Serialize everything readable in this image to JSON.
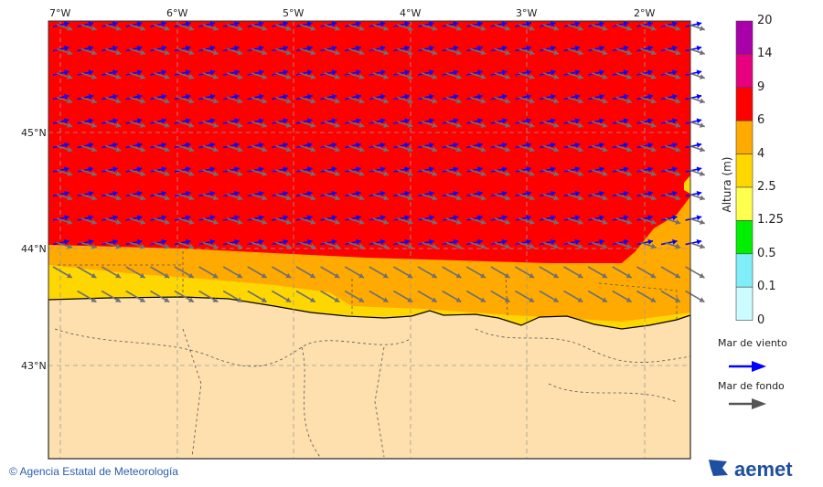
{
  "map": {
    "lon_labels": [
      "7°W",
      "6°W",
      "5°W",
      "4°W",
      "3°W",
      "2°W"
    ],
    "lat_labels": [
      "45°N",
      "44°N",
      "43°N"
    ],
    "colors": {
      "land": "#fde0ae",
      "sea_red": "#ff0000",
      "sea_orange": "#ffaa00",
      "sea_yellow": "#ffd700",
      "wind_arrow": "#0000ff",
      "swell_arrow": "#707070"
    }
  },
  "colorbar": {
    "title": "Altura (m)",
    "ticks": [
      "20",
      "14",
      "9",
      "6",
      "4",
      "2.5",
      "1.25",
      "0.5",
      "0.1",
      "0"
    ],
    "colors": [
      "#aa00aa",
      "#e60080",
      "#ff0000",
      "#ffaa00",
      "#ffd700",
      "#ffff50",
      "#00ee00",
      "#80eef8",
      "#ccfcff"
    ]
  },
  "legend": {
    "wind_sea": "Mar de viento",
    "swell": "Mar de fondo",
    "wind_color": "#0000ff",
    "swell_color": "#555555"
  },
  "footer": {
    "copyright": "© Agencia Estatal de Meteorología",
    "logo": "aemet"
  }
}
